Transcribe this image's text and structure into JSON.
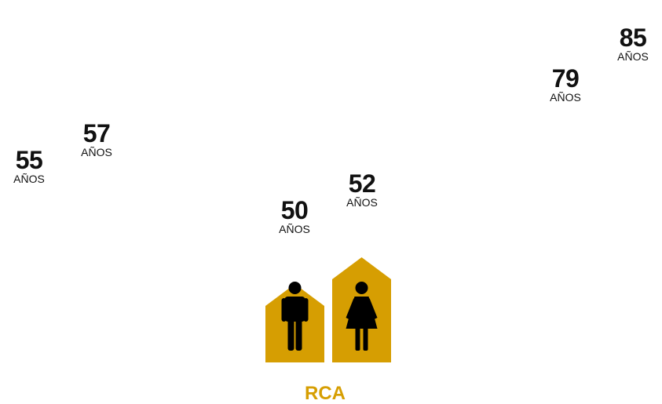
{
  "unit_label": "AÑOS",
  "colors": {
    "highlight": "#D69E02",
    "text": "#111111",
    "icon": "#000000"
  },
  "icons": {
    "male": "man-icon",
    "female": "woman-icon"
  },
  "chart_data": {
    "type": "bar",
    "title": "",
    "xlabel": "",
    "ylabel": "",
    "unit": "AÑOS",
    "ylim": [
      0,
      90
    ],
    "grid": false,
    "shown_bars": [
      {
        "group": "RCA",
        "sex": "male",
        "value": 50,
        "label": "50"
      },
      {
        "group": "RCA",
        "sex": "female",
        "value": 52,
        "label": "52"
      }
    ],
    "reference_values": [
      {
        "value": 55,
        "label": "55"
      },
      {
        "value": 57,
        "label": "57"
      },
      {
        "value": 79,
        "label": "79"
      },
      {
        "value": 85,
        "label": "85"
      }
    ],
    "highlight_group": "RCA"
  }
}
